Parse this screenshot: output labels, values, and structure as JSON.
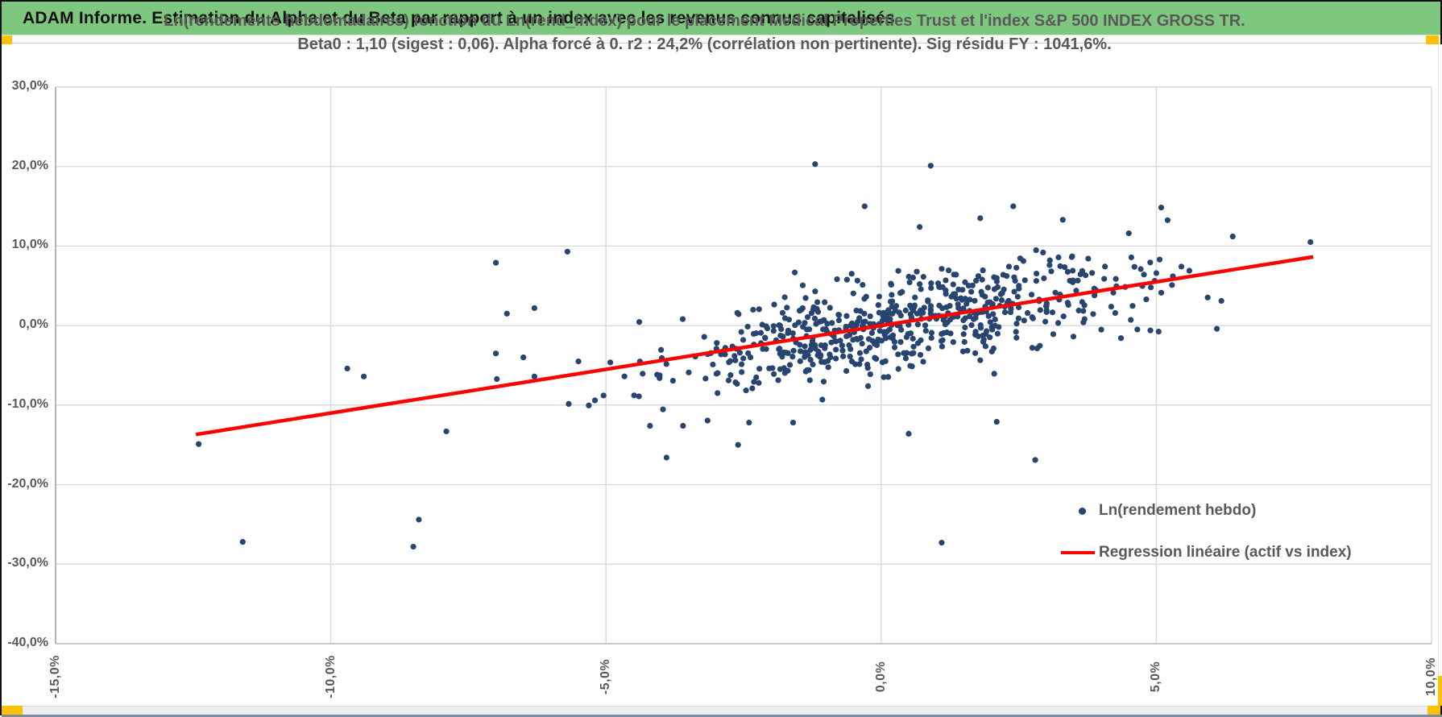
{
  "header": {
    "title": "ADAM Informe. Estimation du Alpha et du Beta par rapport à un index avec les revenus connus capitalisés"
  },
  "colors": {
    "header_bg": "#7ec77e",
    "accent_orange": "#ffc000",
    "point_navy": "#274570",
    "regression_red": "#ff0000",
    "grid": "#d9d9d9",
    "axis": "#9f9f9f",
    "text_gray": "#595959",
    "bottom_edge": "#7b8ca6"
  },
  "chart_data": {
    "type": "scatter",
    "title_line1": "Ln(rendements hebdomadaires) fonction du Ln(rend_Index) pour le placement Medical Properties Trust  et l'index S&P 500 INDEX GROSS TR.",
    "title_line2": "Beta0 : 1,10 (sigest : 0,06). Alpha forcé à 0. r2 : 24,2% (corrélation non pertinente). Sig résidu FY : 1041,6%.",
    "xlabel": "",
    "ylabel": "",
    "xlim": [
      -15,
      10
    ],
    "ylim": [
      -40,
      30
    ],
    "grid": true,
    "x_ticks": [
      {
        "label": "-15,0%",
        "value": -15
      },
      {
        "label": "-10,0%",
        "value": -10
      },
      {
        "label": "-5,0%",
        "value": -5
      },
      {
        "label": "0,0%",
        "value": 0
      },
      {
        "label": "5,0%",
        "value": 5
      },
      {
        "label": "10,0%",
        "value": 10
      }
    ],
    "y_ticks": [
      {
        "label": "30,0%",
        "value": 30
      },
      {
        "label": "20,0%",
        "value": 20
      },
      {
        "label": "10,0%",
        "value": 10
      },
      {
        "label": "0,0%",
        "value": 0
      },
      {
        "label": "-10,0%",
        "value": -10
      },
      {
        "label": "-20,0%",
        "value": -20
      },
      {
        "label": "-30,0%",
        "value": -30
      },
      {
        "label": "-40,0%",
        "value": -40
      }
    ],
    "legend": [
      {
        "label": "Ln(rendement hebdo)",
        "type": "point",
        "color": "#274570"
      },
      {
        "label": "Regression linéaire (actif vs index)",
        "type": "line",
        "color": "#ff0000"
      }
    ],
    "legend_position": "inside-bottom-right",
    "regression": {
      "beta": 1.1,
      "alpha": 0,
      "x_start": -12.45,
      "x_end": 7.85
    },
    "points": [
      [
        -12.4,
        -14.9
      ],
      [
        -11.6,
        -27.2
      ],
      [
        -9.7,
        -5.4
      ],
      [
        -9.4,
        -6.4
      ],
      [
        -8.5,
        -27.8
      ],
      [
        -8.4,
        -24.4
      ],
      [
        -7.9,
        -13.3
      ],
      [
        -7.0,
        -3.5
      ],
      [
        -7.0,
        7.9
      ],
      [
        -6.8,
        1.5
      ],
      [
        -6.5,
        -4.0
      ],
      [
        -6.3,
        -6.4
      ],
      [
        -6.3,
        2.2
      ],
      [
        -5.7,
        9.3
      ],
      [
        -5.5,
        -4.5
      ],
      [
        -5.2,
        -9.4
      ],
      [
        -4.4,
        -8.9
      ],
      [
        -4.2,
        -12.6
      ],
      [
        -3.9,
        -16.6
      ],
      [
        -3.6,
        -12.6
      ],
      [
        -2.6,
        -15.0
      ],
      [
        -2.4,
        -12.2
      ],
      [
        -1.6,
        -12.2
      ],
      [
        -1.2,
        20.3
      ],
      [
        -0.3,
        15.0
      ],
      [
        0.5,
        -13.6
      ],
      [
        0.7,
        12.4
      ],
      [
        0.9,
        20.1
      ],
      [
        1.1,
        -27.3
      ],
      [
        1.8,
        13.5
      ],
      [
        2.1,
        -12.1
      ],
      [
        2.4,
        15.0
      ],
      [
        2.8,
        -16.9
      ],
      [
        3.3,
        13.3
      ],
      [
        4.5,
        11.6
      ],
      [
        4.9,
        4.8
      ],
      [
        5.0,
        6.6
      ],
      [
        5.3,
        6.2
      ],
      [
        5.6,
        6.9
      ],
      [
        6.1,
        -0.4
      ],
      [
        7.8,
        10.5
      ]
    ],
    "cloud": {
      "comment": "dense central cluster of ~620 weekly return points, bivariate around regression line",
      "count": 620,
      "seed": 11,
      "x_mean": 0.3,
      "x_std": 2.1,
      "beta": 1.1,
      "resid_std": 3.0,
      "x_range": [
        -7.6,
        6.4
      ],
      "y_range": [
        -18.5,
        17.0
      ]
    }
  }
}
